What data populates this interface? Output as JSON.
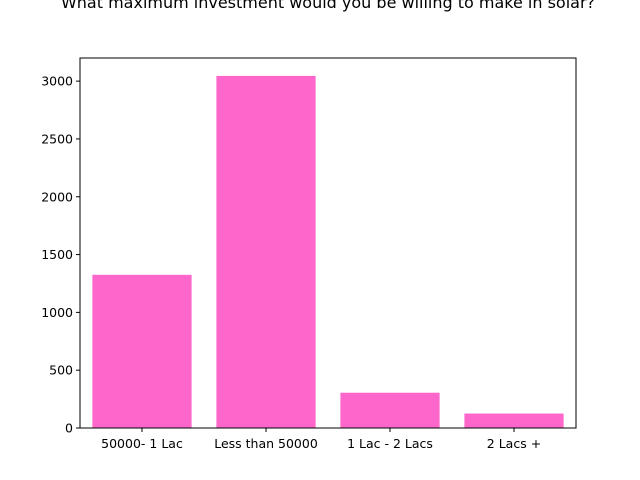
{
  "chart_data": {
    "type": "bar",
    "title": "What maximum investment would you be willing to make in solar?",
    "xlabel": "",
    "ylabel": "",
    "categories": [
      "50000- 1 Lac",
      "Less than 50000",
      "1 Lac - 2 Lacs",
      "2 Lacs +"
    ],
    "values": [
      1325,
      3045,
      305,
      125
    ],
    "ylim": [
      0,
      3200
    ],
    "yticks": [
      0,
      500,
      1000,
      1500,
      2000,
      2500,
      3000
    ],
    "bar_color": "#ff66cc",
    "grid": false,
    "legend": "none"
  }
}
